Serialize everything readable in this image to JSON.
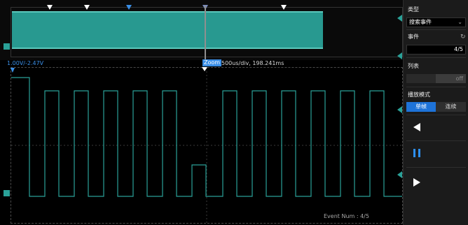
{
  "overview": {
    "markers": [
      "white",
      "white",
      "blue",
      "zoom",
      "white"
    ]
  },
  "info_bar": {
    "scale": "1.00V/-2.47V",
    "zoom_chip": "Zoom",
    "zoom_info": "500us/div, 198.241ms"
  },
  "grid": {
    "event_num": "Event Num : 4/5"
  },
  "panel": {
    "type_label": "类型",
    "type_value": "搜索事件",
    "event_label": "事件",
    "event_value": "4/5",
    "list_label": "列表",
    "list_state": "off",
    "play_mode_label": "播放模式",
    "mode_single": "单帧",
    "mode_continuous": "连续"
  },
  "colors": {
    "trace": "#2aa198",
    "accent": "#1e73d8",
    "background": "#000000"
  },
  "icons": {
    "type_dropdown": "chevron-down-icon",
    "event_refresh": "refresh-icon",
    "prev": "play-left-icon",
    "pause": "pause-icon",
    "next": "play-right-icon"
  }
}
